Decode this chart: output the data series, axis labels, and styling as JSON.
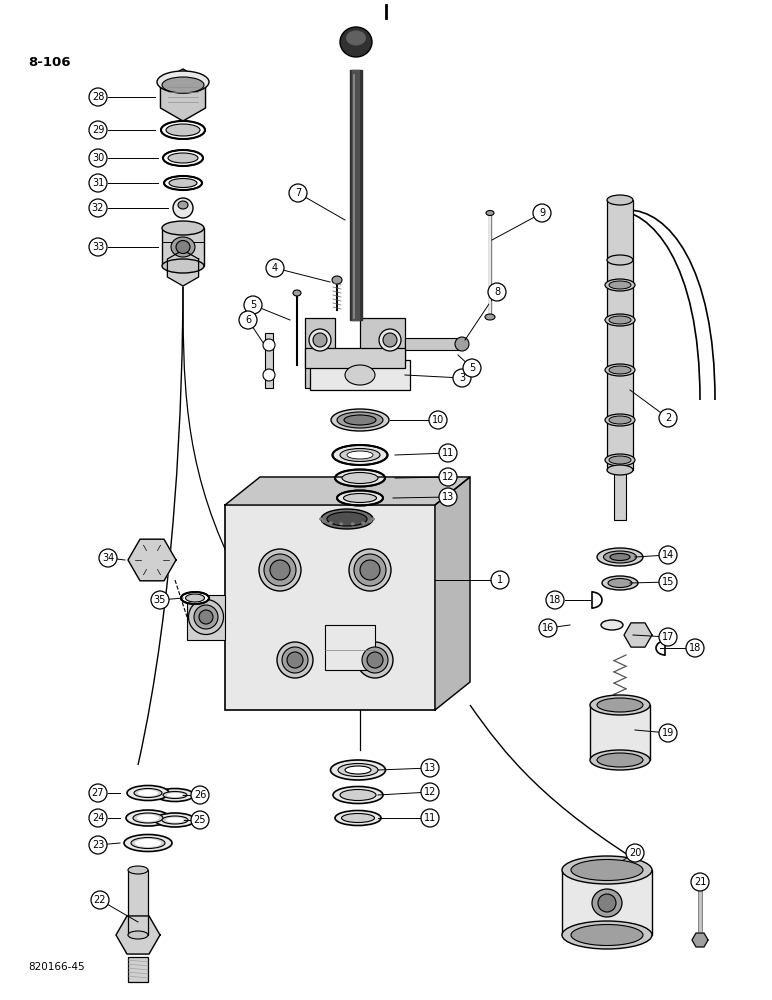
{
  "page_label": "8-106",
  "footer_text": "820166-45",
  "bg_color": "#ffffff",
  "lc": "#000000",
  "gray1": "#c8c8c8",
  "gray2": "#a0a0a0",
  "gray3": "#808080",
  "gray4": "#505050",
  "gray5": "#e8e8e8",
  "gray6": "#d0d0d0",
  "gray_dark": "#303030"
}
